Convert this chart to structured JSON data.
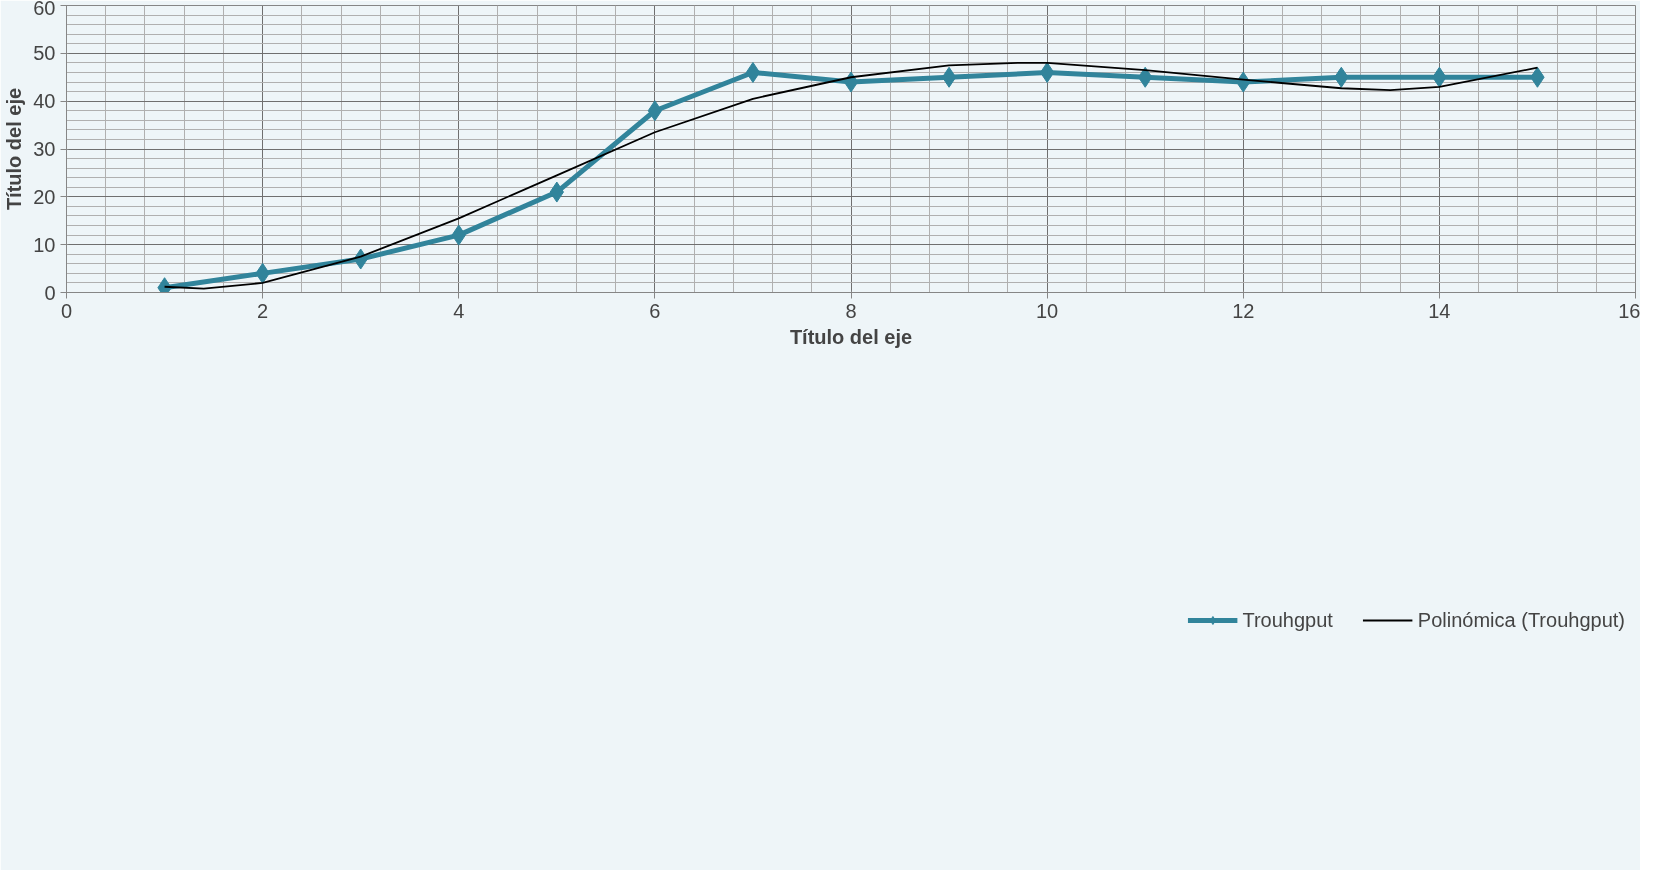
{
  "chart_data": {
    "type": "line",
    "xlabel": "Título del eje",
    "ylabel": "Título del eje",
    "xlim": [
      0,
      16
    ],
    "xticks": [
      0,
      2,
      4,
      6,
      8,
      10,
      12,
      14,
      16
    ],
    "ylim": [
      0,
      60
    ],
    "yticks": [
      0,
      10,
      20,
      30,
      40,
      50,
      60
    ],
    "grid": true,
    "legend": "bottom",
    "series": [
      {
        "name": "Trouhgput",
        "color": "#31849b",
        "marker": "diamond",
        "x": [
          1,
          2,
          3,
          4,
          5,
          6,
          7,
          8,
          9,
          10,
          11,
          12,
          13,
          14,
          15
        ],
        "values": [
          1,
          4,
          7,
          12,
          21,
          38,
          46,
          44,
          45,
          46,
          45,
          44,
          45,
          45,
          45
        ]
      },
      {
        "name": "Polinómica (Trouhgput)",
        "color": "#000000",
        "marker": "none",
        "x": [
          1,
          1.4,
          2,
          3,
          4,
          5,
          6,
          7,
          8,
          9,
          9.7,
          10,
          11,
          12,
          13,
          13.5,
          14,
          15
        ],
        "values": [
          1.2,
          0.8,
          2,
          7.5,
          15.5,
          24.5,
          33.5,
          40.5,
          45,
          47.5,
          48,
          48,
          46.5,
          44.5,
          42.7,
          42.3,
          43,
          47
        ]
      }
    ]
  }
}
